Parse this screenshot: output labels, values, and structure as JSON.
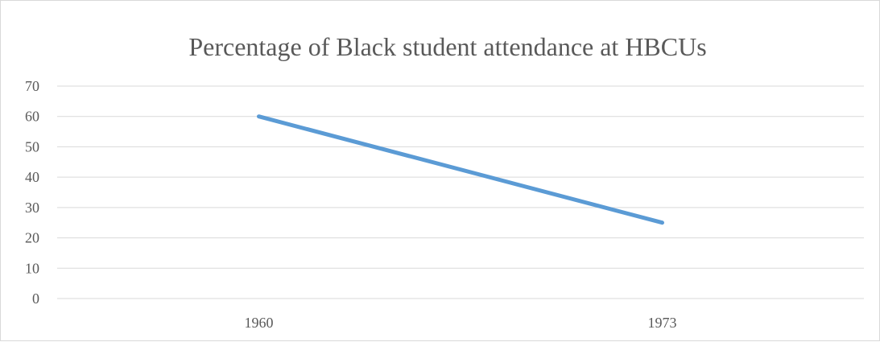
{
  "chart_data": {
    "type": "line",
    "title": "Percentage of Black student attendance at HBCUs",
    "categories": [
      "1960",
      "1973"
    ],
    "series": [
      {
        "values": [
          60,
          25
        ],
        "color": "#5b9bd5"
      }
    ],
    "ylim": [
      0,
      70
    ],
    "yticks": [
      0,
      10,
      20,
      30,
      40,
      50,
      60,
      70
    ],
    "grid": true,
    "legend": "none"
  }
}
